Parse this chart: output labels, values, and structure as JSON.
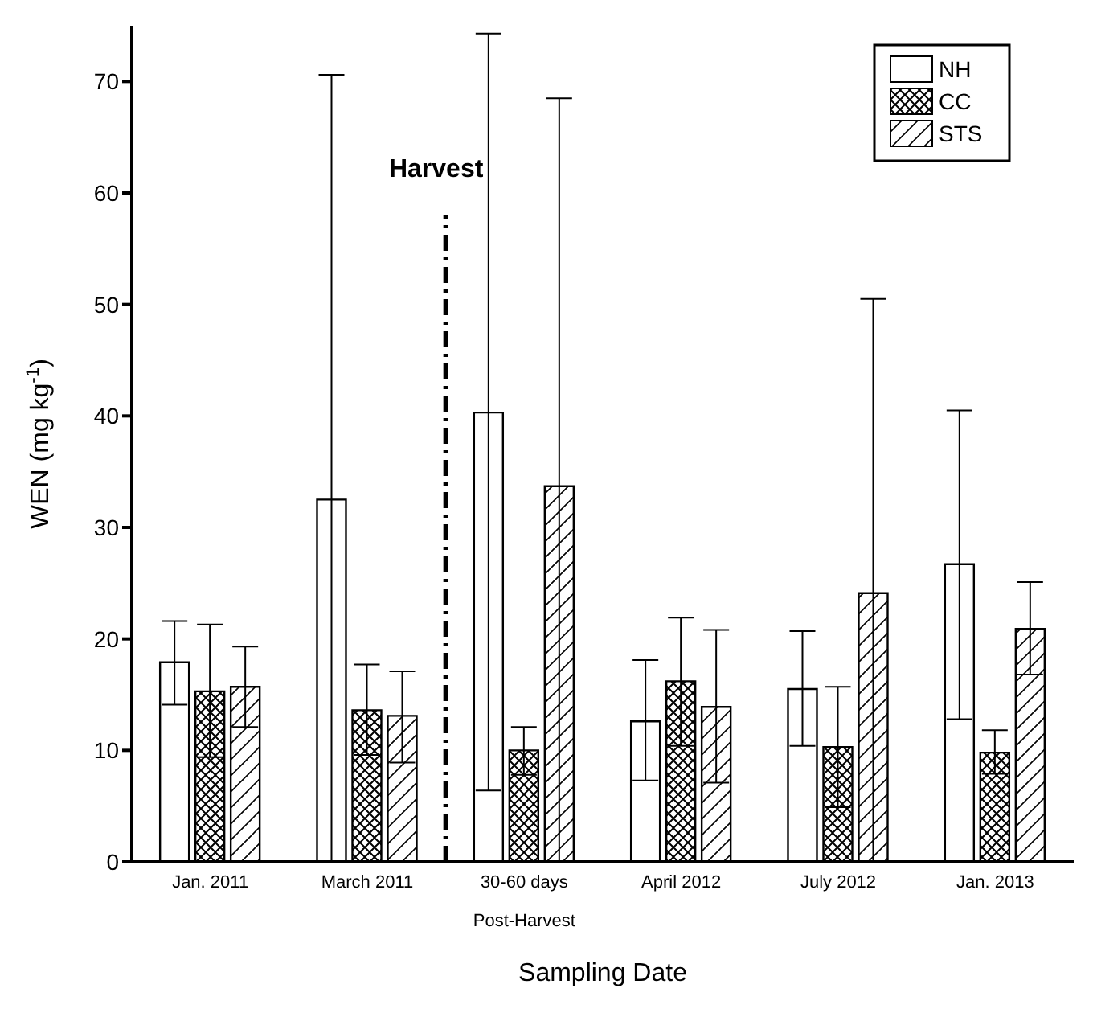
{
  "chart_data": {
    "type": "bar",
    "xlabel": "Sampling Date",
    "ylabel": "WEN (mg kg$^{-1}$)",
    "categories": [
      "Jan. 2011",
      "March 2011",
      "30-60 days",
      "April 2012",
      "July 2012",
      "Jan. 2013"
    ],
    "series": [
      {
        "name": "NH",
        "color": "#000000",
        "values": [
          17.9,
          32.5,
          40.3,
          12.6,
          15.5,
          26.7
        ],
        "errors": [
          [
            14.1,
            21.6
          ],
          [
            0,
            70.6
          ],
          [
            6.4,
            74.3
          ],
          [
            7.3,
            18.1
          ],
          [
            10.4,
            20.7
          ],
          [
            12.8,
            40.5
          ]
        ]
      },
      {
        "name": "CC",
        "color": "#000000",
        "values": [
          15.3,
          13.6,
          10.0,
          16.2,
          10.3,
          9.8
        ],
        "errors": [
          [
            9.4,
            21.3
          ],
          [
            9.6,
            17.7
          ],
          [
            7.8,
            12.1
          ],
          [
            10.4,
            21.9
          ],
          [
            4.9,
            15.7
          ],
          [
            7.9,
            11.8
          ]
        ]
      },
      {
        "name": "STS",
        "color": "#000000",
        "values": [
          15.7,
          13.1,
          33.7,
          13.9,
          24.1,
          20.9
        ],
        "errors": [
          [
            12.1,
            19.3
          ],
          [
            8.9,
            17.1
          ],
          [
            0,
            68.5
          ],
          [
            7.1,
            20.8
          ],
          [
            0,
            50.5
          ],
          [
            16.8,
            25.1
          ]
        ]
      }
    ],
    "ylim": [
      0,
      75
    ],
    "yticks": [
      0,
      10,
      20,
      30,
      40,
      50,
      60,
      70
    ],
    "legend": "top right",
    "annotations": [
      "Harvest",
      "Post-Harvest"
    ]
  }
}
